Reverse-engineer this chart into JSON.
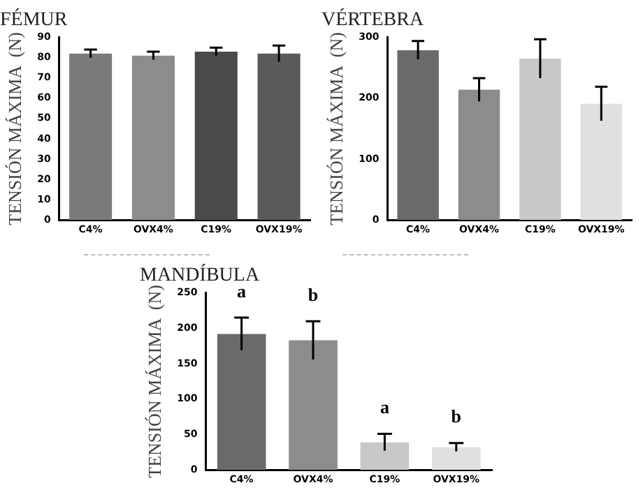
{
  "chart_data": [
    {
      "type": "bar",
      "title": "FÉMUR",
      "ylabel": "TENSIÓN MÁXIMA  (N)",
      "categories": [
        "C4%",
        "OVX4%",
        "C19%",
        "OVX19%"
      ],
      "values": [
        82,
        81,
        83,
        82
      ],
      "errors": [
        2,
        2,
        2,
        4
      ],
      "colors": [
        "#7a7a7a",
        "#8c8c8c",
        "#4a4a4a",
        "#5a5a5a"
      ],
      "ylim": [
        0,
        90
      ],
      "yticks": [
        0,
        10,
        20,
        30,
        40,
        50,
        60,
        70,
        80,
        90
      ],
      "grid": false,
      "legend": false
    },
    {
      "type": "bar",
      "title": "VÉRTEBRA",
      "ylabel": "TENSIÓN MÁXIMA  (N)",
      "categories": [
        "C4%",
        "OVX4%",
        "C19%",
        "OVX19%"
      ],
      "values": [
        279,
        214,
        265,
        191
      ],
      "errors": [
        15,
        19,
        32,
        28
      ],
      "colors": [
        "#6a6a6a",
        "#8c8c8c",
        "#c8c8c8",
        "#e0e0e0"
      ],
      "ylim": [
        0,
        300
      ],
      "yticks": [
        0,
        100,
        200,
        300
      ],
      "grid": false,
      "legend": false
    },
    {
      "type": "bar",
      "title": "MANDÍBULA",
      "ylabel": "TENSIÓN MÁXIMA  (N)",
      "categories": [
        "C4%",
        "OVX4%",
        "C19%",
        "OVX19%"
      ],
      "values": [
        192,
        183,
        39,
        32
      ],
      "errors": [
        23,
        27,
        12,
        6
      ],
      "colors": [
        "#6a6a6a",
        "#8c8c8c",
        "#c8c8c8",
        "#e0e0e0"
      ],
      "ylim": [
        0,
        250
      ],
      "yticks": [
        0,
        50,
        100,
        150,
        200,
        250
      ],
      "grid": false,
      "legend": false,
      "annotations": [
        "a",
        "b",
        "a",
        "b"
      ]
    }
  ]
}
